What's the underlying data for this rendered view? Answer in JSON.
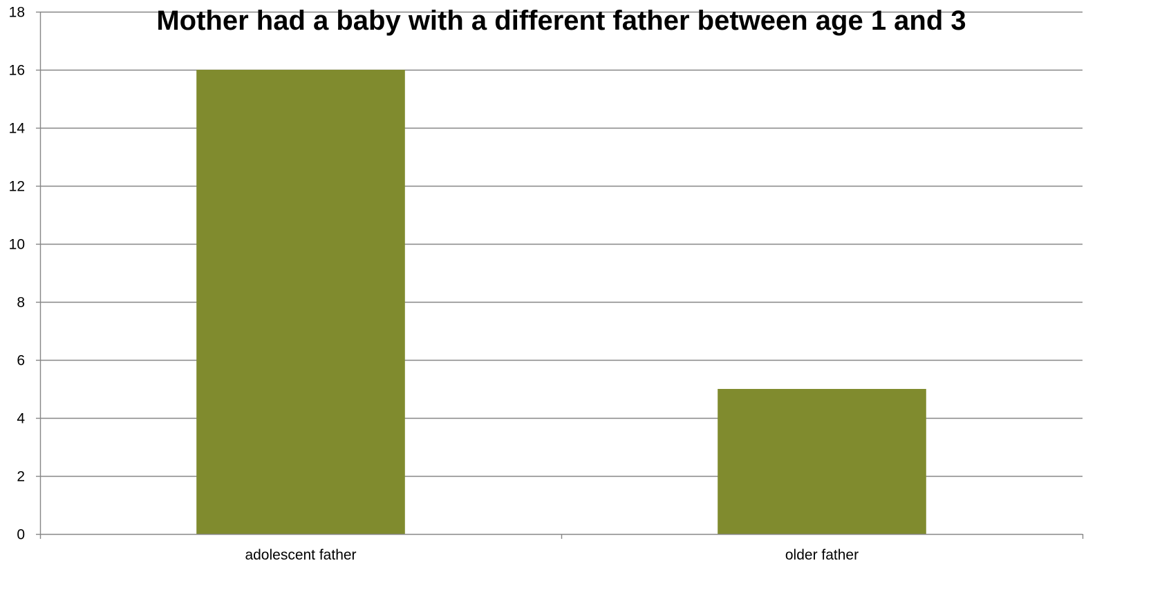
{
  "chart_data": {
    "type": "bar",
    "title": "Mother had a baby with a different father between age 1 and 3",
    "xlabel": "",
    "ylabel": "",
    "categories": [
      "adolescent father",
      "older father"
    ],
    "values": [
      16,
      5
    ],
    "ylim": [
      0,
      18
    ],
    "yticks": [
      0,
      2,
      4,
      6,
      8,
      10,
      12,
      14,
      16,
      18
    ],
    "grid": true,
    "legend": "none",
    "bar_color": "#808b2e",
    "grid_color": "#868686",
    "axis_color": "#868686"
  }
}
